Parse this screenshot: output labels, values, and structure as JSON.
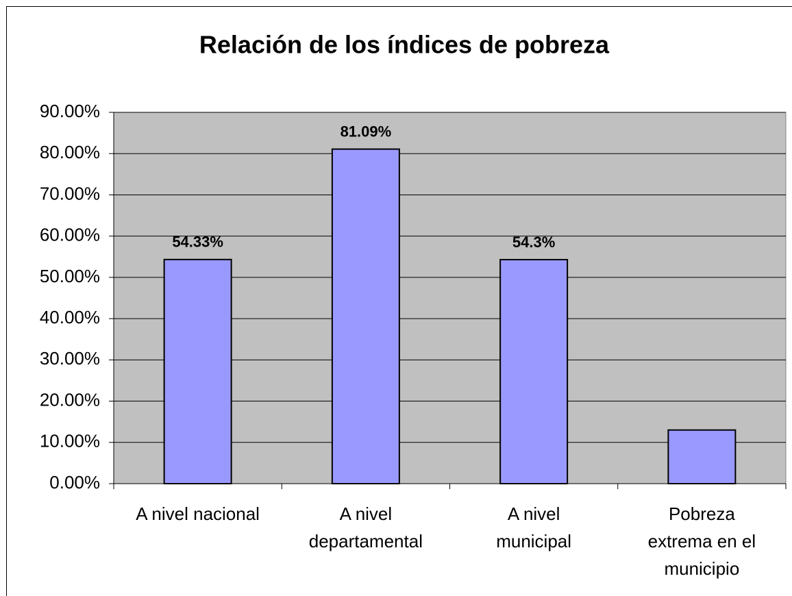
{
  "chart_data": {
    "type": "bar",
    "title": "Relación de los índices de pobreza",
    "categories": [
      "A nivel nacional",
      "A nivel\ndepartamental",
      "A nivel\nmunicipal",
      "Pobreza\nextrema en el\nmunicipio"
    ],
    "values": [
      54.33,
      81.09,
      54.3,
      13
    ],
    "value_labels": [
      "54.33%",
      "81.09%",
      "54.3%",
      null
    ],
    "color": "#9999ff",
    "ylim": [
      0,
      90
    ],
    "yticks": [
      {
        "value": 0,
        "label": "0.00%"
      },
      {
        "value": 10,
        "label": "10.00%"
      },
      {
        "value": 20,
        "label": "20.00%"
      },
      {
        "value": 30,
        "label": "30.00%"
      },
      {
        "value": 40,
        "label": "40.00%"
      },
      {
        "value": 50,
        "label": "50.00%"
      },
      {
        "value": 60,
        "label": "60.00%"
      },
      {
        "value": 70,
        "label": "70.00%"
      },
      {
        "value": 80,
        "label": "80.00%"
      },
      {
        "value": 90,
        "label": "90.00%"
      }
    ],
    "grid": true
  }
}
